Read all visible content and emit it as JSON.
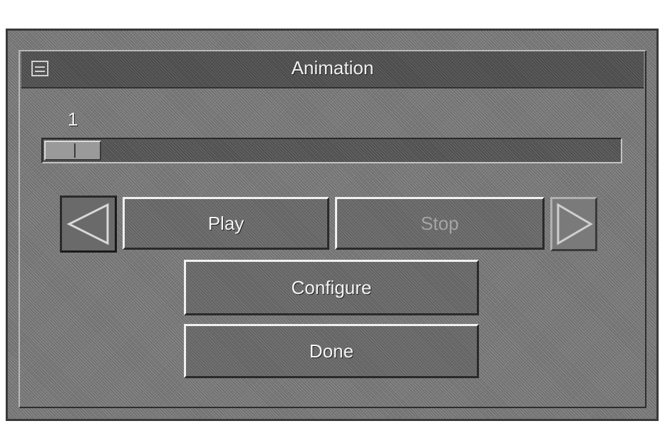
{
  "window": {
    "title": "Animation"
  },
  "icons": {
    "window_menu": "window-menu-icon",
    "step_back": "step-back-arrow-icon",
    "step_forward": "step-forward-arrow-icon"
  },
  "slider": {
    "value": "1"
  },
  "controls": {
    "play_label": "Play",
    "stop_label": "Stop",
    "configure_label": "Configure",
    "done_label": "Done"
  },
  "colors": {
    "window_bg": "#7e7e7e",
    "titlebar_bg": "#555555",
    "text": "#f0f0f0"
  }
}
